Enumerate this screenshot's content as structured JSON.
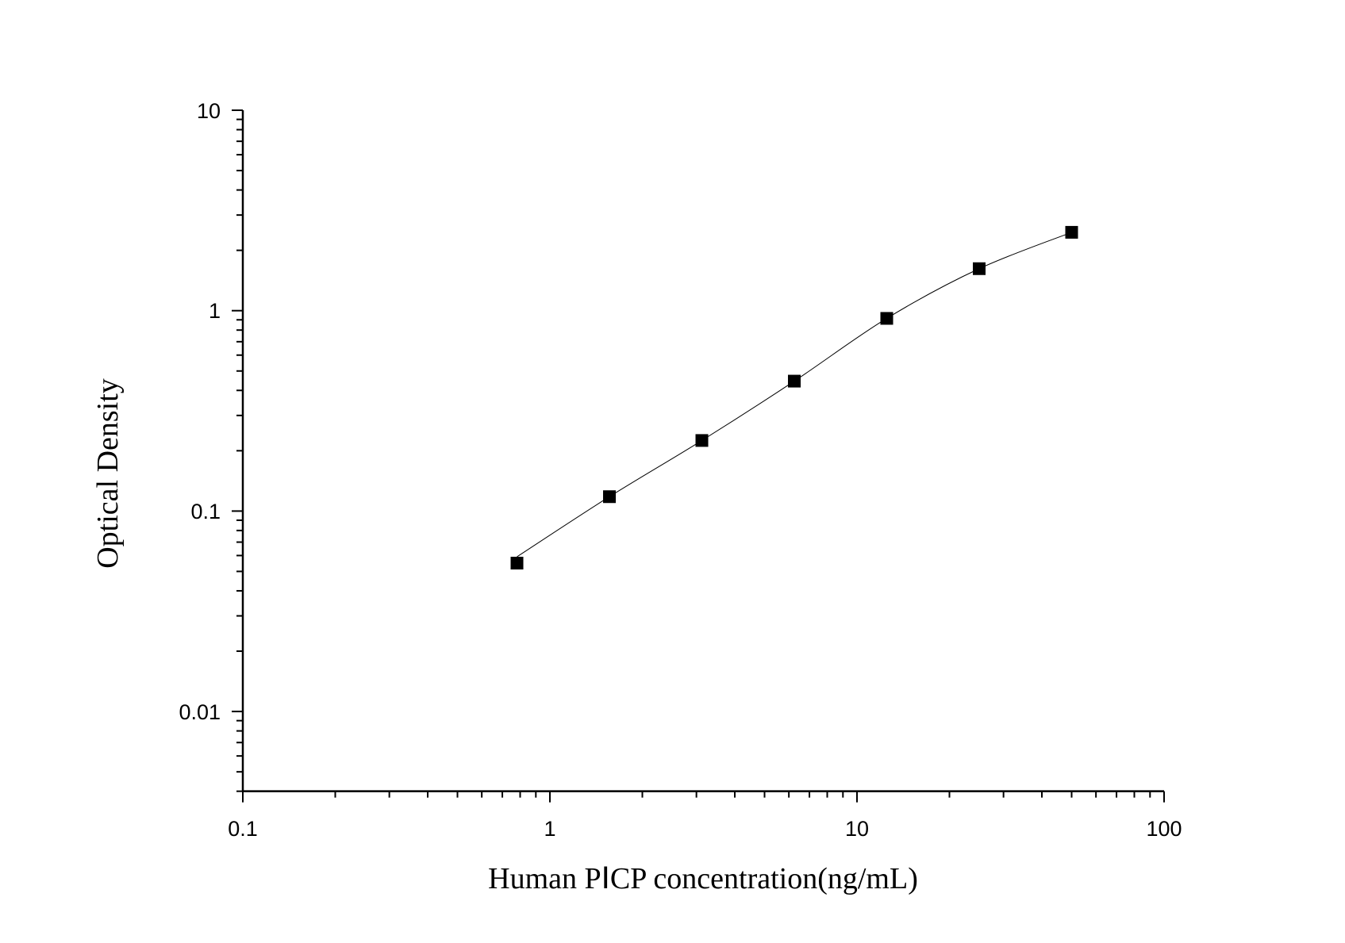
{
  "chart_data": {
    "type": "scatter",
    "title": "",
    "xlabel": "Human PⅠCP concentration(ng/mL)",
    "ylabel": "Optical Density",
    "x_scale": "log",
    "y_scale": "log",
    "xlim": [
      0.1,
      100
    ],
    "ylim": [
      0.004,
      10
    ],
    "x_ticks": [
      "0.1",
      "1",
      "10",
      "100"
    ],
    "y_ticks": [
      "0.01",
      "0.1",
      "1",
      "10"
    ],
    "grid": false,
    "legend": "none",
    "marker": "square",
    "marker_color": "#000000",
    "fit_curve": true,
    "series": [
      {
        "x": [
          0.78125,
          1.5625,
          3.125,
          6.25,
          12.5,
          25,
          50
        ],
        "y": [
          0.055,
          0.118,
          0.225,
          0.445,
          0.915,
          1.62,
          2.46
        ]
      }
    ]
  }
}
